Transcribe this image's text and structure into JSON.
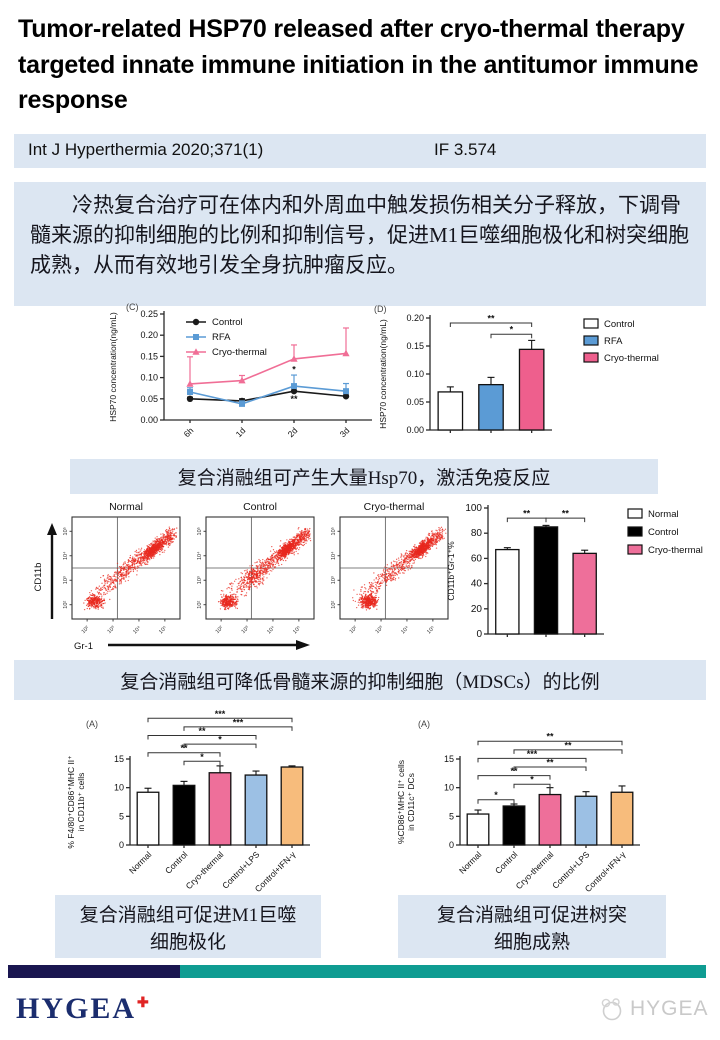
{
  "title": "Tumor-related HSP70 released after cryo-thermal therapy targeted innate immune initiation in the antitumor immune response",
  "journal_bar": {
    "reference": "Int J Hyperthermia 2020;371(1)",
    "impact_factor": "IF 3.574"
  },
  "abstract": "冷热复合治疗可在体内和外周血中触发损伤相关分子释放，下调骨髓来源的抑制细胞的比例和抑制信号，促进M1巨噬细胞极化和树突细胞成熟，从而有效地引发全身抗肿瘤反应。",
  "captions": {
    "hsp70": "复合消融组可产生大量Hsp70，激活免疫反应",
    "mdsc": "复合消融组可降低骨髓来源的抑制细胞（MDSCs）的比例",
    "m1": "复合消融组可促进M1巨噬细胞极化",
    "dc": "复合消融组可促进树突细胞成熟"
  },
  "flow_cytometry": {
    "panels": [
      {
        "title": "Normal"
      },
      {
        "title": "Control"
      },
      {
        "title": "Cryo-thermal"
      }
    ],
    "xlabel": "Gr-1",
    "ylabel": "CD11b",
    "tick_labels": [
      "10²",
      "10³",
      "10⁴",
      "10⁵"
    ],
    "dot_color": "#e8281e"
  },
  "footer": {
    "logo_text": "HYGEA",
    "logo_plus": "✚",
    "watermark_text": "HYGEA"
  },
  "colors": {
    "caption_bg": "#dce6f2",
    "navy_bar": "#1a1650",
    "teal_bar": "#0f9c92",
    "control_black": "#1a1a1a",
    "rfa_blue": "#5b9bd5",
    "cryo_pink": "#ee5f8d",
    "lps_blue": "#9cc0e4",
    "ifn_orange": "#f7bc7c"
  },
  "chart_data": [
    {
      "id": "hsp70_line",
      "type": "line",
      "panel_label": "(C)",
      "x": [
        "6h",
        "1d",
        "2d",
        "3d"
      ],
      "ylabel": "HSP70 concentration(ng/mL)",
      "ylim": [
        0,
        0.25
      ],
      "yticks": [
        0,
        0.05,
        0.1,
        0.15,
        0.2,
        0.25
      ],
      "ytick_decimals": 2,
      "series": [
        {
          "name": "Control",
          "marker": "circle",
          "color": "#1a1a1a",
          "values": [
            0.05,
            0.045,
            0.068,
            0.056
          ],
          "errors": [
            0.004,
            0.005,
            0.007,
            0.006
          ]
        },
        {
          "name": "RFA",
          "marker": "square",
          "color": "#5b9bd5",
          "values": [
            0.066,
            0.038,
            0.08,
            0.068
          ],
          "errors": [
            0.01,
            0.007,
            0.026,
            0.018
          ]
        },
        {
          "name": "Cryo-thermal",
          "marker": "triangle",
          "color": "#f06e96",
          "values": [
            0.085,
            0.093,
            0.144,
            0.157
          ],
          "errors": [
            0.064,
            0.012,
            0.033,
            0.06
          ]
        }
      ],
      "annotations": [
        {
          "x_index": 2,
          "y": 0.112,
          "text": "*"
        },
        {
          "x_index": 2,
          "y": 0.042,
          "text": "**"
        }
      ]
    },
    {
      "id": "hsp70_bar",
      "type": "bar",
      "panel_label": "(D)",
      "categories": [
        "Control",
        "RFA",
        "Cryo-thermal"
      ],
      "values": [
        0.068,
        0.081,
        0.144
      ],
      "errors": [
        0.009,
        0.013,
        0.016
      ],
      "colors": [
        "#ffffff",
        "#5b9bd5",
        "#ee5f8d"
      ],
      "ylabel": "HSP70 concentration(ng/mL)",
      "ylim": [
        0,
        0.2
      ],
      "yticks": [
        0,
        0.05,
        0.1,
        0.15,
        0.2
      ],
      "ytick_decimals": 2,
      "legend": [
        {
          "label": "Control",
          "color": "#ffffff"
        },
        {
          "label": "RFA",
          "color": "#5b9bd5"
        },
        {
          "label": "Cryo-thermal",
          "color": "#ee5f8d"
        }
      ],
      "brackets": [
        {
          "from": 1,
          "to": 2,
          "label": "*",
          "y": 0.171
        },
        {
          "from": 0,
          "to": 2,
          "label": "**",
          "y": 0.191
        }
      ]
    },
    {
      "id": "mdsc_bar",
      "type": "bar",
      "categories": [
        "Normal",
        "Control",
        "Cryo-thermal"
      ],
      "values": [
        67,
        85,
        64
      ],
      "errors": [
        1.5,
        1.2,
        2.5
      ],
      "colors": [
        "#ffffff",
        "#000000",
        "#ee6f9a"
      ],
      "ylabel": "CD11b⁺Gr-1⁺%",
      "ylim": [
        0,
        100
      ],
      "yticks": [
        0,
        20,
        40,
        60,
        80,
        100
      ],
      "ytick_decimals": 0,
      "legend": [
        {
          "label": "Normal",
          "color": "#ffffff"
        },
        {
          "label": "Control",
          "color": "#000000"
        },
        {
          "label": "Cryo-thermal",
          "color": "#ee6f9a"
        }
      ],
      "brackets": [
        {
          "from": 0,
          "to": 1,
          "label": "**",
          "y": 92
        },
        {
          "from": 1,
          "to": 2,
          "label": "**",
          "y": 92
        }
      ]
    },
    {
      "id": "m1_bar",
      "type": "bar",
      "panel_label": "(A)",
      "categories": [
        "Normal",
        "Control",
        "Cryo-thermal",
        "Control+LPS",
        "Control+IFN-γ"
      ],
      "values": [
        9.2,
        10.4,
        12.6,
        12.2,
        13.6
      ],
      "errors": [
        0.7,
        0.7,
        1.2,
        0.7,
        0.2
      ],
      "colors": [
        "#ffffff",
        "#000000",
        "#ee6f9a",
        "#9cc0e4",
        "#f7bc7c"
      ],
      "ylabel": [
        "% F4/80⁺CD86⁺MHC II⁺",
        "in CD11b⁺ cells"
      ],
      "ylim": [
        0,
        15
      ],
      "yticks": [
        0,
        5,
        10,
        15
      ],
      "ytick_decimals": 0,
      "rotate_labels": true,
      "brackets": [
        {
          "from": 1,
          "to": 2,
          "label": "*",
          "y": 14.6
        },
        {
          "from": 0,
          "to": 2,
          "label": "**",
          "y": 16.1
        },
        {
          "from": 1,
          "to": 3,
          "label": "*",
          "y": 17.6
        },
        {
          "from": 0,
          "to": 3,
          "label": "**",
          "y": 19.1
        },
        {
          "from": 1,
          "to": 4,
          "label": "***",
          "y": 20.6
        },
        {
          "from": 0,
          "to": 4,
          "label": "***",
          "y": 22.1
        }
      ]
    },
    {
      "id": "dc_bar",
      "type": "bar",
      "panel_label": "(A)",
      "categories": [
        "Normal",
        "Control",
        "Cryo-thermal",
        "Control+LPS",
        "Control+IFN-γ"
      ],
      "values": [
        5.4,
        6.8,
        8.8,
        8.5,
        9.2
      ],
      "errors": [
        0.7,
        0.35,
        1.2,
        0.8,
        1.1
      ],
      "colors": [
        "#ffffff",
        "#000000",
        "#ee6f9a",
        "#9cc0e4",
        "#f7bc7c"
      ],
      "ylabel": [
        "%CD86⁺MHC II⁺ cells",
        "in CD11c⁺ DCs"
      ],
      "ylim": [
        0,
        15
      ],
      "yticks": [
        0,
        5,
        10,
        15
      ],
      "ytick_decimals": 0,
      "rotate_labels": true,
      "brackets": [
        {
          "from": 0,
          "to": 1,
          "label": "*",
          "y": 7.9
        },
        {
          "from": 1,
          "to": 2,
          "label": "*",
          "y": 10.6
        },
        {
          "from": 0,
          "to": 2,
          "label": "**",
          "y": 12.1
        },
        {
          "from": 1,
          "to": 3,
          "label": "**",
          "y": 13.6
        },
        {
          "from": 0,
          "to": 3,
          "label": "***",
          "y": 15.1
        },
        {
          "from": 1,
          "to": 4,
          "label": "**",
          "y": 16.6
        },
        {
          "from": 0,
          "to": 4,
          "label": "**",
          "y": 18.1
        }
      ]
    }
  ]
}
